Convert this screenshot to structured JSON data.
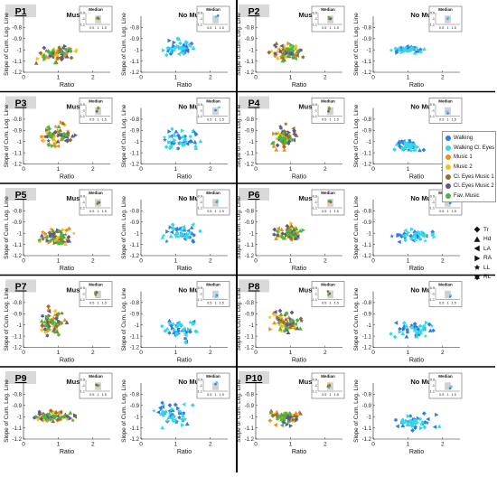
{
  "labels": {
    "xlabel": "Ratio",
    "ylabel": "Slope of Cum. Log. Line",
    "inset_title": "Median"
  },
  "conditions": [
    {
      "key": "music",
      "label": "Music"
    },
    {
      "key": "nomusic",
      "label": "No Music"
    }
  ],
  "participants": [
    "P1",
    "P2",
    "P3",
    "P4",
    "P5",
    "P6",
    "P7",
    "P8",
    "P9",
    "P10"
  ],
  "legend_conditions": [
    {
      "label": "Walking",
      "color": "#2f7be0"
    },
    {
      "label": "Walking Cl. Eyes",
      "color": "#33d8ec"
    },
    {
      "label": "Music 1",
      "color": "#ee8d1a"
    },
    {
      "label": "Music 2",
      "color": "#f3c21a"
    },
    {
      "label": "Cl. Eyes Music 1",
      "color": "#9b6d2c"
    },
    {
      "label": "Cl. Eyes Music 2",
      "color": "#5e5b8a"
    },
    {
      "label": "Fav. Music",
      "color": "#49b640"
    }
  ],
  "legend_markers": [
    {
      "label": "Tr",
      "shape": "diamond"
    },
    {
      "label": "Hd",
      "shape": "triangle-up"
    },
    {
      "label": "LA",
      "shape": "triangle-left"
    },
    {
      "label": "RA",
      "shape": "triangle-right"
    },
    {
      "label": "LL",
      "shape": "star"
    },
    {
      "label": "RL",
      "shape": "hexagram"
    }
  ],
  "chart_data": {
    "type": "scatter",
    "xlabel": "Ratio",
    "ylabel": "Slope of Cum. Log. Line",
    "xlim": [
      0,
      2.5
    ],
    "ylim": [
      -1.2,
      -0.7
    ],
    "xticks": [
      0,
      1,
      2
    ],
    "yticks": [
      -1.2,
      -1.1,
      -1,
      -0.9,
      -0.8
    ],
    "inset": {
      "title": "Median",
      "xlim": [
        0,
        2
      ],
      "ylim": [
        -1.1,
        -0.9
      ],
      "xticks": [
        0.5,
        1,
        1.5
      ],
      "yticks": [
        -1.1,
        -1,
        -0.9
      ]
    },
    "panels": [
      {
        "participant": "P1",
        "music": {
          "cx": 0.95,
          "cy": -1.04,
          "sx": 0.35,
          "sy": 0.045
        },
        "nomusic": {
          "cx": 1.1,
          "cy": -0.98,
          "sx": 0.3,
          "sy": 0.06
        },
        "median_music": [
          [
            0.9,
            -1.0
          ],
          [
            1.0,
            -1.01
          ],
          [
            0.95,
            -0.99
          ],
          [
            1.05,
            -1.0
          ],
          [
            1.0,
            -0.98
          ]
        ],
        "median_nomusic": [
          [
            1.2,
            -0.95
          ],
          [
            1.05,
            -0.97
          ]
        ]
      },
      {
        "participant": "P2",
        "music": {
          "cx": 0.9,
          "cy": -1.02,
          "sx": 0.3,
          "sy": 0.05
        },
        "nomusic": {
          "cx": 1.0,
          "cy": -1.0,
          "sx": 0.3,
          "sy": 0.025
        },
        "median_music": [
          [
            0.9,
            -1.0
          ],
          [
            1.0,
            -0.99
          ],
          [
            0.95,
            -1.01
          ],
          [
            1.05,
            -1.0
          ],
          [
            0.9,
            -0.98
          ]
        ],
        "median_nomusic": [
          [
            1.0,
            -1.0
          ],
          [
            1.05,
            -0.99
          ]
        ]
      },
      {
        "participant": "P3",
        "music": {
          "cx": 0.95,
          "cy": -0.95,
          "sx": 0.35,
          "sy": 0.07
        },
        "nomusic": {
          "cx": 1.1,
          "cy": -0.98,
          "sx": 0.4,
          "sy": 0.06
        },
        "median_music": [
          [
            1.0,
            -0.95
          ],
          [
            0.95,
            -1.0
          ],
          [
            1.0,
            -0.97
          ],
          [
            0.9,
            -1.02
          ],
          [
            1.05,
            -0.96
          ]
        ],
        "median_nomusic": [
          [
            1.0,
            -1.0
          ],
          [
            1.3,
            -0.95
          ]
        ]
      },
      {
        "participant": "P4",
        "music": {
          "cx": 0.85,
          "cy": -0.97,
          "sx": 0.25,
          "sy": 0.075
        },
        "nomusic": {
          "cx": 1.0,
          "cy": -1.04,
          "sx": 0.25,
          "sy": 0.04
        },
        "median_music": [
          [
            0.9,
            -0.95
          ],
          [
            0.95,
            -1.0
          ],
          [
            0.9,
            -0.98
          ],
          [
            0.85,
            -1.02
          ],
          [
            0.95,
            -0.97
          ]
        ],
        "median_nomusic": [
          [
            1.0,
            -1.05
          ],
          [
            0.95,
            -1.03
          ]
        ]
      },
      {
        "participant": "P5",
        "music": {
          "cx": 1.0,
          "cy": -1.03,
          "sx": 0.35,
          "sy": 0.05
        },
        "nomusic": {
          "cx": 1.1,
          "cy": -1.0,
          "sx": 0.35,
          "sy": 0.05
        },
        "median_music": [
          [
            1.0,
            -1.02
          ],
          [
            1.05,
            -1.0
          ],
          [
            0.95,
            -1.03
          ],
          [
            1.1,
            -1.01
          ],
          [
            1.0,
            -1.0
          ]
        ],
        "median_nomusic": [
          [
            1.1,
            -1.0
          ],
          [
            1.15,
            -0.98
          ]
        ]
      },
      {
        "participant": "P6",
        "music": {
          "cx": 0.95,
          "cy": -1.0,
          "sx": 0.3,
          "sy": 0.05
        },
        "nomusic": {
          "cx": 1.2,
          "cy": -1.02,
          "sx": 0.5,
          "sy": 0.04
        },
        "median_music": [
          [
            0.95,
            -1.0
          ],
          [
            1.0,
            -1.01
          ],
          [
            0.9,
            -0.99
          ],
          [
            1.05,
            -1.0
          ],
          [
            1.0,
            -0.98
          ]
        ],
        "median_nomusic": [
          [
            1.2,
            -1.02
          ],
          [
            1.3,
            -1.0
          ]
        ]
      },
      {
        "participant": "P7",
        "music": {
          "cx": 0.8,
          "cy": -0.98,
          "sx": 0.25,
          "sy": 0.08
        },
        "nomusic": {
          "cx": 1.1,
          "cy": -1.03,
          "sx": 0.35,
          "sy": 0.07
        },
        "median_music": [
          [
            0.8,
            -0.97
          ],
          [
            0.85,
            -1.0
          ],
          [
            0.8,
            -1.02
          ],
          [
            0.9,
            -0.98
          ],
          [
            0.75,
            -0.99
          ]
        ],
        "median_nomusic": [
          [
            1.1,
            -1.03
          ],
          [
            1.05,
            -1.05
          ]
        ]
      },
      {
        "participant": "P8",
        "music": {
          "cx": 0.85,
          "cy": -0.98,
          "sx": 0.3,
          "sy": 0.07
        },
        "nomusic": {
          "cx": 1.2,
          "cy": -1.04,
          "sx": 0.4,
          "sy": 0.05
        },
        "median_music": [
          [
            0.85,
            -0.98
          ],
          [
            0.9,
            -1.0
          ],
          [
            0.8,
            -0.96
          ],
          [
            0.95,
            -1.0
          ],
          [
            0.85,
            -1.02
          ]
        ],
        "median_nomusic": [
          [
            1.2,
            -1.05
          ],
          [
            1.25,
            -1.03
          ]
        ]
      },
      {
        "participant": "P9",
        "music": {
          "cx": 0.9,
          "cy": -1.0,
          "sx": 0.45,
          "sy": 0.035
        },
        "nomusic": {
          "cx": 1.0,
          "cy": -0.98,
          "sx": 0.45,
          "sy": 0.07
        },
        "median_music": [
          [
            0.9,
            -1.0
          ],
          [
            1.0,
            -1.01
          ],
          [
            0.85,
            -0.99
          ],
          [
            0.95,
            -1.0
          ],
          [
            1.05,
            -1.0
          ]
        ],
        "median_nomusic": [
          [
            1.0,
            -0.98
          ],
          [
            1.1,
            -0.95
          ]
        ]
      },
      {
        "participant": "P10",
        "music": {
          "cx": 0.85,
          "cy": -1.0,
          "sx": 0.3,
          "sy": 0.05
        },
        "nomusic": {
          "cx": 1.2,
          "cy": -1.05,
          "sx": 0.45,
          "sy": 0.05
        },
        "median_music": [
          [
            0.85,
            -1.0
          ],
          [
            0.9,
            -0.98
          ],
          [
            0.8,
            -1.02
          ],
          [
            0.95,
            -1.0
          ],
          [
            0.9,
            -1.03
          ]
        ],
        "median_nomusic": [
          [
            1.2,
            -1.05
          ],
          [
            1.3,
            -1.02
          ]
        ]
      }
    ]
  }
}
